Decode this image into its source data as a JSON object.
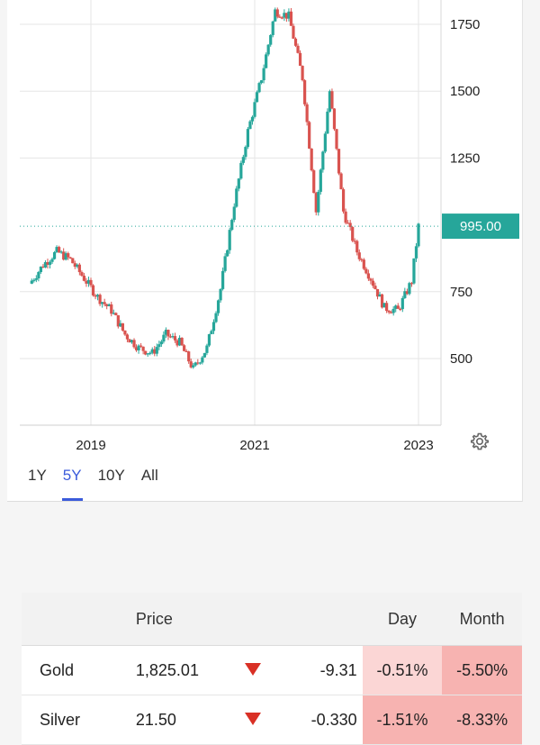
{
  "chart": {
    "y_ticks": [
      "1750",
      "1500",
      "1250",
      "750",
      "500"
    ],
    "x_ticks": [
      "2019",
      "2021",
      "2023"
    ],
    "current_price_label": "995.00",
    "colors": {
      "up": "#26a69a",
      "down": "#d9534f",
      "price_tag": "#26a69a",
      "grid": "#e6e6e6"
    }
  },
  "chart_data": {
    "type": "line",
    "x": [
      "2018-04",
      "2018-06",
      "2018-08",
      "2018-10",
      "2018-12",
      "2019-02",
      "2019-04",
      "2019-06",
      "2019-08",
      "2019-10",
      "2019-12",
      "2020-02",
      "2020-04",
      "2020-06",
      "2020-08",
      "2020-10",
      "2020-12",
      "2021-02",
      "2021-04",
      "2021-06",
      "2021-08",
      "2021-10",
      "2021-12",
      "2022-02",
      "2022-04",
      "2022-06",
      "2022-08",
      "2022-10",
      "2022-12",
      "2023-01"
    ],
    "series": [
      {
        "values": [
          780,
          850,
          900,
          870,
          800,
          730,
          680,
          590,
          540,
          520,
          590,
          560,
          460,
          540,
          760,
          1080,
          1350,
          1550,
          1800,
          1780,
          1550,
          1050,
          1500,
          1050,
          900,
          800,
          690,
          680,
          790,
          995
        ]
      }
    ],
    "x_tick_labels": [
      "2019",
      "2021",
      "2023"
    ],
    "y_tick_labels": [
      "500",
      "750",
      "1250",
      "1500",
      "1750"
    ],
    "ylim": [
      280,
      1800
    ],
    "grid": true,
    "last_value_label": "995.00"
  },
  "range_tabs": [
    {
      "label": "1Y",
      "active": false
    },
    {
      "label": "5Y",
      "active": true
    },
    {
      "label": "10Y",
      "active": false
    },
    {
      "label": "All",
      "active": false
    }
  ],
  "table": {
    "headers": {
      "name": "",
      "price": "Price",
      "change": "",
      "day": "Day",
      "month": "Month"
    },
    "rows": [
      {
        "name": "Gold",
        "price": "1,825.01",
        "direction": "down",
        "change": "-9.31",
        "day": "-0.51%",
        "month": "-5.50%"
      },
      {
        "name": "Silver",
        "price": "21.50",
        "direction": "down",
        "change": "-0.330",
        "day": "-1.51%",
        "month": "-8.33%"
      }
    ]
  },
  "icons": {
    "settings": "gear-icon",
    "down_arrow": "down-triangle-icon"
  }
}
